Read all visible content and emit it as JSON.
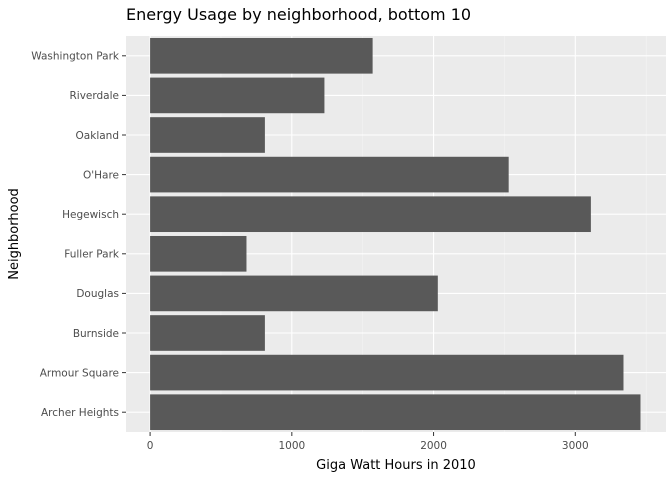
{
  "chart_data": {
    "type": "bar",
    "orientation": "horizontal",
    "title": "Energy Usage by neighborhood, bottom 10",
    "xlabel": "Giga Watt Hours in 2010",
    "ylabel": "Neighborhood",
    "categories": [
      "Archer Heights",
      "Armour Square",
      "Burnside",
      "Douglas",
      "Fuller Park",
      "Hegewisch",
      "O'Hare",
      "Oakland",
      "Riverdale",
      "Washington Park"
    ],
    "values": [
      3460,
      3340,
      810,
      2030,
      680,
      3110,
      2530,
      810,
      1230,
      1570
    ],
    "xticks": [
      0,
      1000,
      2000,
      3000
    ],
    "xlim": [
      -170,
      3640
    ],
    "grid": true,
    "colors": {
      "bar": "#595959",
      "panel": "#ebebeb",
      "grid": "#ffffff"
    }
  }
}
